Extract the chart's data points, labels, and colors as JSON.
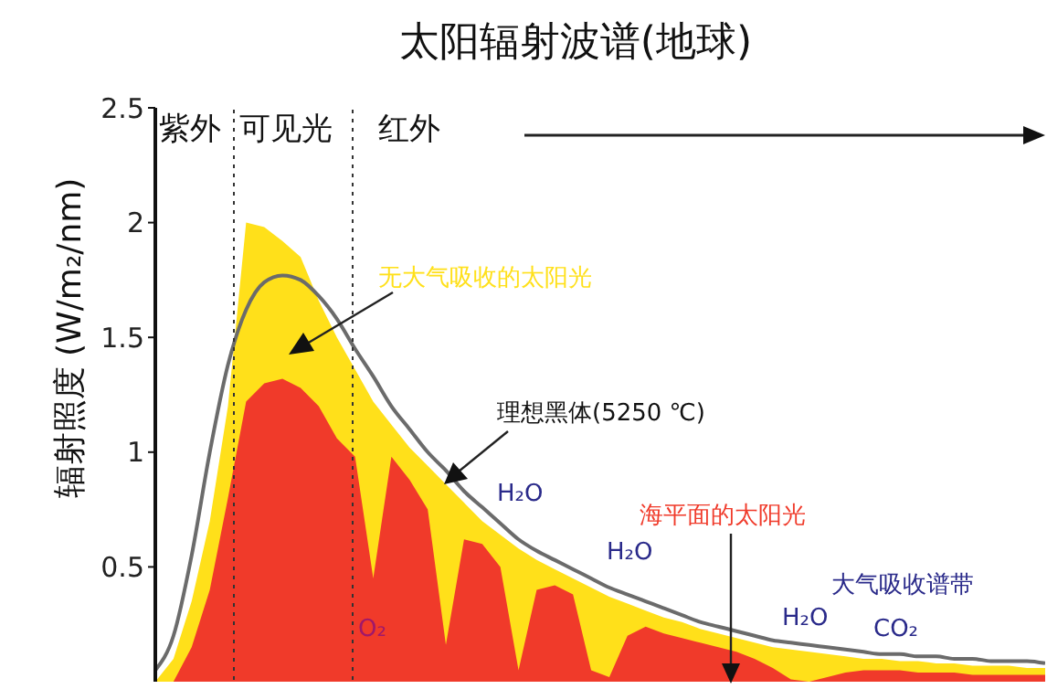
{
  "chart_data": {
    "type": "area",
    "title": "太阳辐射波谱(地球)",
    "ylabel": "辐射照度 (W/m₂/nm)",
    "categories": [
      null,
      null,
      null,
      null,
      null,
      null,
      null,
      null,
      null,
      null,
      null,
      null,
      null,
      null,
      null,
      null,
      null,
      null,
      null,
      null,
      null,
      null,
      null,
      null,
      null,
      null,
      null,
      null,
      null,
      null,
      null,
      null,
      null,
      null,
      null,
      null,
      null,
      null,
      null,
      null,
      null,
      null,
      null,
      null,
      null,
      null,
      null,
      null,
      null,
      null
    ],
    "series": [
      {
        "name": "无大气吸收的太阳光",
        "color": "#ffe01a",
        "values": [
          0,
          0.1,
          0.35,
          0.7,
          1.2,
          2.0,
          1.98,
          1.92,
          1.85,
          1.66,
          1.5,
          1.36,
          1.22,
          1.12,
          1.02,
          0.94,
          0.86,
          0.78,
          0.7,
          0.64,
          0.58,
          0.53,
          0.49,
          0.45,
          0.41,
          0.37,
          0.34,
          0.31,
          0.28,
          0.26,
          0.23,
          0.21,
          0.19,
          0.17,
          0.15,
          0.14,
          0.13,
          0.12,
          0.11,
          0.1,
          0.1,
          0.09,
          0.09,
          0.08,
          0.08,
          0.07,
          0.07,
          0.07,
          0.06,
          0.06
        ]
      },
      {
        "name": "海平面的太阳光",
        "color": "#f03a2a",
        "values": [
          0,
          0,
          0.15,
          0.4,
          0.8,
          1.22,
          1.3,
          1.32,
          1.28,
          1.2,
          1.06,
          0.98,
          0.45,
          0.98,
          0.88,
          0.75,
          0.16,
          0.62,
          0.6,
          0.5,
          0.05,
          0.4,
          0.42,
          0.38,
          0.05,
          0.02,
          0.2,
          0.24,
          0.21,
          0.19,
          0.17,
          0.15,
          0.13,
          0.1,
          0.06,
          0.01,
          0,
          0.02,
          0.04,
          0.05,
          0.05,
          0.05,
          0.04,
          0.04,
          0.04,
          0.03,
          0.03,
          0.03,
          0.03,
          0.03
        ]
      },
      {
        "name": "理想黑体(5250 ℃)",
        "type": "line",
        "color": "#6b6b6b",
        "values": [
          0.05,
          0.2,
          0.55,
          1.0,
          1.38,
          1.62,
          1.74,
          1.77,
          1.75,
          1.68,
          1.58,
          1.45,
          1.33,
          1.2,
          1.1,
          1.0,
          0.92,
          0.83,
          0.76,
          0.69,
          0.62,
          0.57,
          0.53,
          0.49,
          0.45,
          0.41,
          0.38,
          0.35,
          0.32,
          0.29,
          0.26,
          0.24,
          0.22,
          0.2,
          0.18,
          0.17,
          0.16,
          0.15,
          0.14,
          0.13,
          0.12,
          0.12,
          0.11,
          0.11,
          0.1,
          0.1,
          0.09,
          0.09,
          0.09,
          0.08
        ]
      }
    ],
    "ylim": [
      0,
      2.5
    ],
    "yticks": [
      0.5,
      1,
      1.5,
      2,
      2.5
    ],
    "tick_labels": "y",
    "grid": false,
    "legend": false,
    "annotations": [
      "紫外",
      "可见光",
      "红外",
      "O₂",
      "H₂O",
      "H₂O",
      "H₂O",
      "CO₂",
      "大气吸收谱带"
    ]
  }
}
